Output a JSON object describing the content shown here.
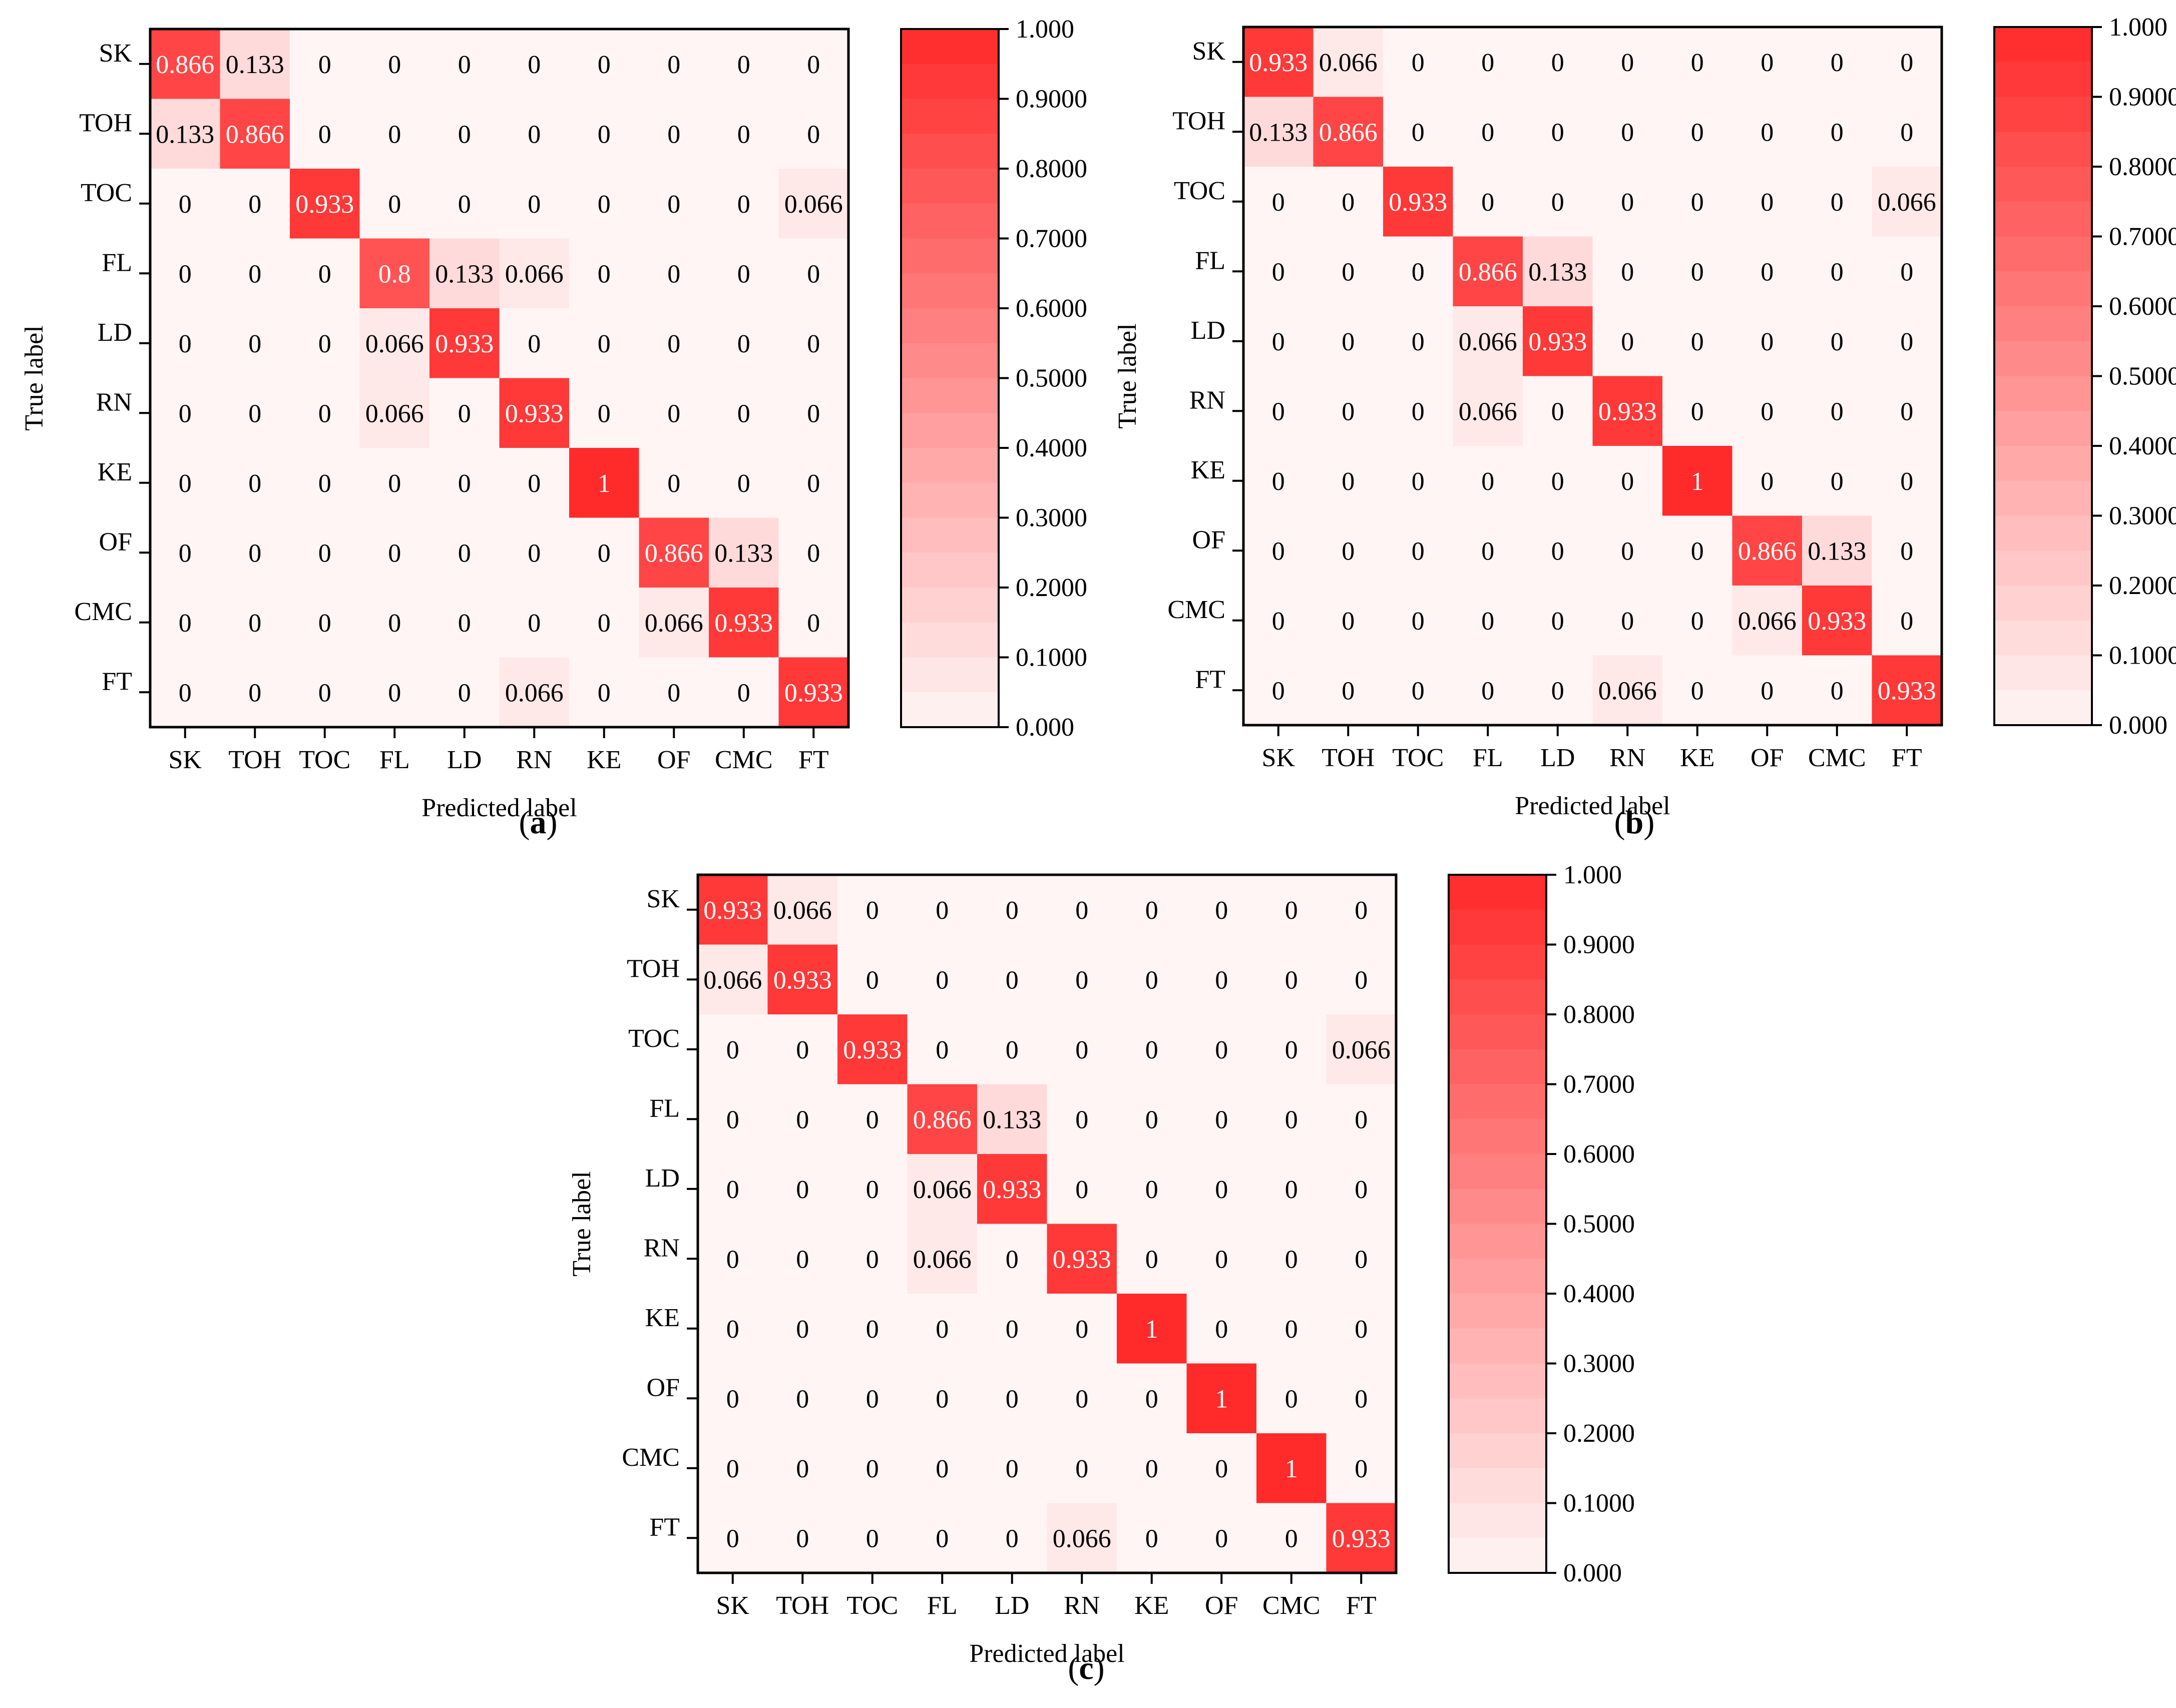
{
  "figure": {
    "panels": [
      "a",
      "b",
      "c"
    ]
  },
  "chart_data": [
    {
      "type": "heatmap",
      "panel_label": "a",
      "title": "",
      "xlabel": "Predicted label",
      "ylabel": "True label",
      "categories": [
        "SK",
        "TOH",
        "TOC",
        "FL",
        "LD",
        "RN",
        "KE",
        "OF",
        "CMC",
        "FT"
      ],
      "values": [
        [
          0.866,
          0.133,
          0,
          0,
          0,
          0,
          0,
          0,
          0,
          0
        ],
        [
          0.133,
          0.866,
          0,
          0,
          0,
          0,
          0,
          0,
          0,
          0
        ],
        [
          0,
          0,
          0.933,
          0,
          0,
          0,
          0,
          0,
          0,
          0.066
        ],
        [
          0,
          0,
          0,
          0.8,
          0.133,
          0.066,
          0,
          0,
          0,
          0
        ],
        [
          0,
          0,
          0,
          0.066,
          0.933,
          0,
          0,
          0,
          0,
          0
        ],
        [
          0,
          0,
          0,
          0.066,
          0,
          0.933,
          0,
          0,
          0,
          0
        ],
        [
          0,
          0,
          0,
          0,
          0,
          0,
          1,
          0,
          0,
          0
        ],
        [
          0,
          0,
          0,
          0,
          0,
          0,
          0,
          0.866,
          0.133,
          0
        ],
        [
          0,
          0,
          0,
          0,
          0,
          0,
          0,
          0.066,
          0.933,
          0
        ],
        [
          0,
          0,
          0,
          0,
          0,
          0.066,
          0,
          0,
          0,
          0.933
        ]
      ],
      "cell_labels": [
        [
          "0.866",
          "0.133",
          "0",
          "0",
          "0",
          "0",
          "0",
          "0",
          "0",
          "0"
        ],
        [
          "0.133",
          "0.866",
          "0",
          "0",
          "0",
          "0",
          "0",
          "0",
          "0",
          "0"
        ],
        [
          "0",
          "0",
          "0.933",
          "0",
          "0",
          "0",
          "0",
          "0",
          "0",
          "0.066"
        ],
        [
          "0",
          "0",
          "0",
          "0.8",
          "0.133",
          "0.066",
          "0",
          "0",
          "0",
          "0"
        ],
        [
          "0",
          "0",
          "0",
          "0.066",
          "0.933",
          "0",
          "0",
          "0",
          "0",
          "0"
        ],
        [
          "0",
          "0",
          "0",
          "0.066",
          "0",
          "0.933",
          "0",
          "0",
          "0",
          "0"
        ],
        [
          "0",
          "0",
          "0",
          "0",
          "0",
          "0",
          "1",
          "0",
          "0",
          "0"
        ],
        [
          "0",
          "0",
          "0",
          "0",
          "0",
          "0",
          "0",
          "0.866",
          "0.133",
          "0"
        ],
        [
          "0",
          "0",
          "0",
          "0",
          "0",
          "0",
          "0",
          "0.066",
          "0.933",
          "0"
        ],
        [
          "0",
          "0",
          "0",
          "0",
          "0",
          "0.066",
          "0",
          "0",
          "0",
          "0.933"
        ]
      ],
      "colorbar": {
        "range": [
          0,
          1
        ],
        "ticks": [
          "1.000",
          "0.9000",
          "0.8000",
          "0.7000",
          "0.6000",
          "0.5000",
          "0.4000",
          "0.3000",
          "0.2000",
          "0.1000",
          "0.000"
        ]
      }
    },
    {
      "type": "heatmap",
      "panel_label": "b",
      "title": "",
      "xlabel": "Predicted label",
      "ylabel": "True label",
      "categories": [
        "SK",
        "TOH",
        "TOC",
        "FL",
        "LD",
        "RN",
        "KE",
        "OF",
        "CMC",
        "FT"
      ],
      "values": [
        [
          0.933,
          0.066,
          0,
          0,
          0,
          0,
          0,
          0,
          0,
          0
        ],
        [
          0.133,
          0.866,
          0,
          0,
          0,
          0,
          0,
          0,
          0,
          0
        ],
        [
          0,
          0,
          0.933,
          0,
          0,
          0,
          0,
          0,
          0,
          0.066
        ],
        [
          0,
          0,
          0,
          0.866,
          0.133,
          0,
          0,
          0,
          0,
          0
        ],
        [
          0,
          0,
          0,
          0.066,
          0.933,
          0,
          0,
          0,
          0,
          0
        ],
        [
          0,
          0,
          0,
          0.066,
          0,
          0.933,
          0,
          0,
          0,
          0
        ],
        [
          0,
          0,
          0,
          0,
          0,
          0,
          1,
          0,
          0,
          0
        ],
        [
          0,
          0,
          0,
          0,
          0,
          0,
          0,
          0.866,
          0.133,
          0
        ],
        [
          0,
          0,
          0,
          0,
          0,
          0,
          0,
          0.066,
          0.933,
          0
        ],
        [
          0,
          0,
          0,
          0,
          0,
          0.066,
          0,
          0,
          0,
          0.933
        ]
      ],
      "cell_labels": [
        [
          "0.933",
          "0.066",
          "0",
          "0",
          "0",
          "0",
          "0",
          "0",
          "0",
          "0"
        ],
        [
          "0.133",
          "0.866",
          "0",
          "0",
          "0",
          "0",
          "0",
          "0",
          "0",
          "0"
        ],
        [
          "0",
          "0",
          "0.933",
          "0",
          "0",
          "0",
          "0",
          "0",
          "0",
          "0.066"
        ],
        [
          "0",
          "0",
          "0",
          "0.866",
          "0.133",
          "0",
          "0",
          "0",
          "0",
          "0"
        ],
        [
          "0",
          "0",
          "0",
          "0.066",
          "0.933",
          "0",
          "0",
          "0",
          "0",
          "0"
        ],
        [
          "0",
          "0",
          "0",
          "0.066",
          "0",
          "0.933",
          "0",
          "0",
          "0",
          "0"
        ],
        [
          "0",
          "0",
          "0",
          "0",
          "0",
          "0",
          "1",
          "0",
          "0",
          "0"
        ],
        [
          "0",
          "0",
          "0",
          "0",
          "0",
          "0",
          "0",
          "0.866",
          "0.133",
          "0"
        ],
        [
          "0",
          "0",
          "0",
          "0",
          "0",
          "0",
          "0",
          "0.066",
          "0.933",
          "0"
        ],
        [
          "0",
          "0",
          "0",
          "0",
          "0",
          "0.066",
          "0",
          "0",
          "0",
          "0.933"
        ]
      ],
      "colorbar": {
        "range": [
          0,
          1
        ],
        "ticks": [
          "1.000",
          "0.9000",
          "0.8000",
          "0.7000",
          "0.6000",
          "0.5000",
          "0.4000",
          "0.3000",
          "0.2000",
          "0.1000",
          "0.000"
        ]
      }
    },
    {
      "type": "heatmap",
      "panel_label": "c",
      "title": "",
      "xlabel": "Predicted label",
      "ylabel": "True label",
      "categories": [
        "SK",
        "TOH",
        "TOC",
        "FL",
        "LD",
        "RN",
        "KE",
        "OF",
        "CMC",
        "FT"
      ],
      "values": [
        [
          0.933,
          0.066,
          0,
          0,
          0,
          0,
          0,
          0,
          0,
          0
        ],
        [
          0.066,
          0.933,
          0,
          0,
          0,
          0,
          0,
          0,
          0,
          0
        ],
        [
          0,
          0,
          0.933,
          0,
          0,
          0,
          0,
          0,
          0,
          0.066
        ],
        [
          0,
          0,
          0,
          0.866,
          0.133,
          0,
          0,
          0,
          0,
          0
        ],
        [
          0,
          0,
          0,
          0.066,
          0.933,
          0,
          0,
          0,
          0,
          0
        ],
        [
          0,
          0,
          0,
          0.066,
          0,
          0.933,
          0,
          0,
          0,
          0
        ],
        [
          0,
          0,
          0,
          0,
          0,
          0,
          1,
          0,
          0,
          0
        ],
        [
          0,
          0,
          0,
          0,
          0,
          0,
          0,
          1,
          0,
          0
        ],
        [
          0,
          0,
          0,
          0,
          0,
          0,
          0,
          0,
          1,
          0
        ],
        [
          0,
          0,
          0,
          0,
          0,
          0.066,
          0,
          0,
          0,
          0.933
        ]
      ],
      "cell_labels": [
        [
          "0.933",
          "0.066",
          "0",
          "0",
          "0",
          "0",
          "0",
          "0",
          "0",
          "0"
        ],
        [
          "0.066",
          "0.933",
          "0",
          "0",
          "0",
          "0",
          "0",
          "0",
          "0",
          "0"
        ],
        [
          "0",
          "0",
          "0.933",
          "0",
          "0",
          "0",
          "0",
          "0",
          "0",
          "0.066"
        ],
        [
          "0",
          "0",
          "0",
          "0.866",
          "0.133",
          "0",
          "0",
          "0",
          "0",
          "0"
        ],
        [
          "0",
          "0",
          "0",
          "0.066",
          "0.933",
          "0",
          "0",
          "0",
          "0",
          "0"
        ],
        [
          "0",
          "0",
          "0",
          "0.066",
          "0",
          "0.933",
          "0",
          "0",
          "0",
          "0"
        ],
        [
          "0",
          "0",
          "0",
          "0",
          "0",
          "0",
          "1",
          "0",
          "0",
          "0"
        ],
        [
          "0",
          "0",
          "0",
          "0",
          "0",
          "0",
          "0",
          "1",
          "0",
          "0"
        ],
        [
          "0",
          "0",
          "0",
          "0",
          "0",
          "0",
          "0",
          "0",
          "1",
          "0"
        ],
        [
          "0",
          "0",
          "0",
          "0",
          "0",
          "0.066",
          "0",
          "0",
          "0",
          "0.933"
        ]
      ],
      "colorbar": {
        "range": [
          0,
          1
        ],
        "ticks": [
          "1.000",
          "0.9000",
          "0.8000",
          "0.7000",
          "0.6000",
          "0.5000",
          "0.4000",
          "0.3000",
          "0.2000",
          "0.1000",
          "0.000"
        ]
      }
    }
  ],
  "colors": {
    "low": "#fff5f5",
    "high": "#ff2a2a",
    "text_dark": "#000000",
    "text_light": "#ffffff"
  }
}
